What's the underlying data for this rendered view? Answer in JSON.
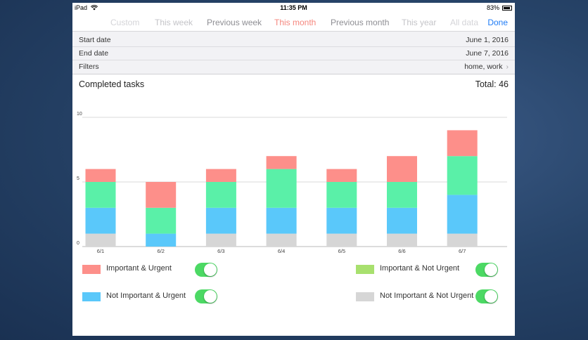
{
  "status_bar": {
    "carrier": "iPad",
    "time": "11:35 PM",
    "battery": "83%"
  },
  "tabs": [
    "Custom",
    "This week",
    "Previous week",
    "This month",
    "Previous month",
    "This year",
    "All data"
  ],
  "active_tab": "This month",
  "done_label": "Done",
  "info": {
    "start_label": "Start date",
    "start_value": "June 1, 2016",
    "end_label": "End date",
    "end_value": "June 7, 2016",
    "filters_label": "Filters",
    "filters_value": "home, work"
  },
  "card": {
    "title": "Completed tasks",
    "total": "Total: 46"
  },
  "chart_data": {
    "type": "bar",
    "stacked": true,
    "categories": [
      "6/1",
      "6/2",
      "6/3",
      "6/4",
      "6/5",
      "6/6",
      "6/7"
    ],
    "series": [
      {
        "name": "Not Important & Not Urgent",
        "color": "#d6d6d6",
        "values": [
          1,
          0,
          1,
          1,
          1,
          1,
          1
        ]
      },
      {
        "name": "Not Important & Urgent",
        "color": "#5ac8fa",
        "values": [
          2,
          1,
          2,
          2,
          2,
          2,
          3
        ]
      },
      {
        "name": "Important & Not Urgent",
        "color": "#5af0a8",
        "values": [
          2,
          2,
          2,
          3,
          2,
          2,
          3
        ]
      },
      {
        "name": "Important & Urgent",
        "color": "#fd8f8a",
        "values": [
          1,
          2,
          1,
          1,
          1,
          2,
          2
        ]
      }
    ],
    "y_ticks": [
      "0",
      "5",
      "10"
    ],
    "ylim": [
      0,
      10
    ],
    "grid": true
  },
  "legend": [
    {
      "label": "Important & Urgent",
      "color": "#fd8f8a",
      "enabled": true
    },
    {
      "label": "Important & Not Urgent",
      "color": "#a8e06e",
      "enabled": true
    },
    {
      "label": "Not Important & Urgent",
      "color": "#5ac8fa",
      "enabled": true
    },
    {
      "label": "Not Important & Not Urgent",
      "color": "#d6d6d6",
      "enabled": true
    }
  ],
  "icons": {
    "wifi": "wifi-icon",
    "battery": "battery-icon",
    "chevron": "chevron-right-icon"
  }
}
